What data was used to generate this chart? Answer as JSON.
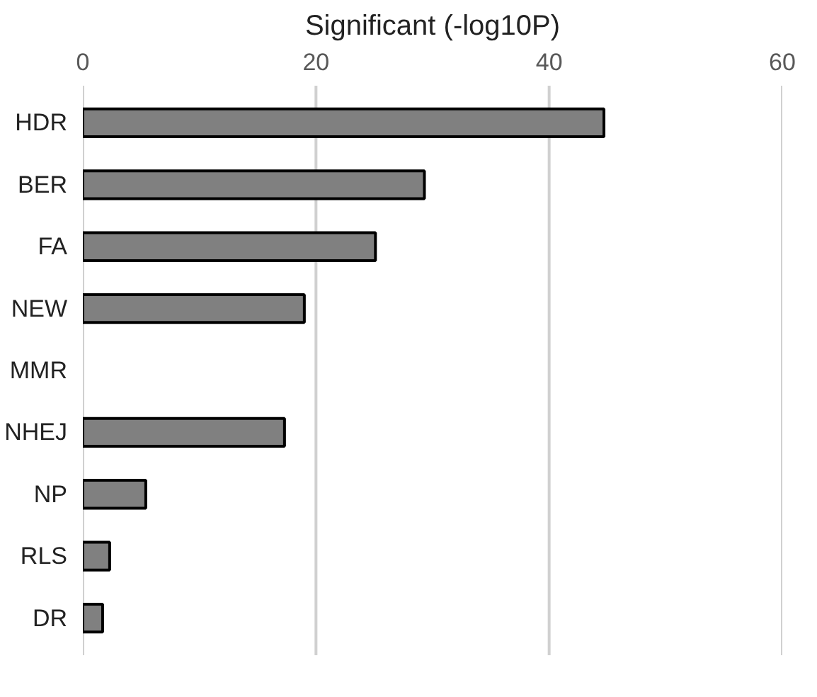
{
  "chart_data": {
    "type": "bar",
    "orientation": "horizontal",
    "title": "Significant (-log10P)",
    "categories": [
      "HDR",
      "BER",
      "FA",
      "NEW",
      "MMR",
      "NHEJ",
      "NP",
      "RLS",
      "DR"
    ],
    "values": [
      44.7,
      29.3,
      25.1,
      19.0,
      null,
      17.3,
      5.4,
      2.3,
      1.7
    ],
    "color": "#808080",
    "xlim": [
      0,
      60
    ],
    "xticks": [
      0,
      20,
      40,
      60
    ],
    "grid": "x"
  }
}
